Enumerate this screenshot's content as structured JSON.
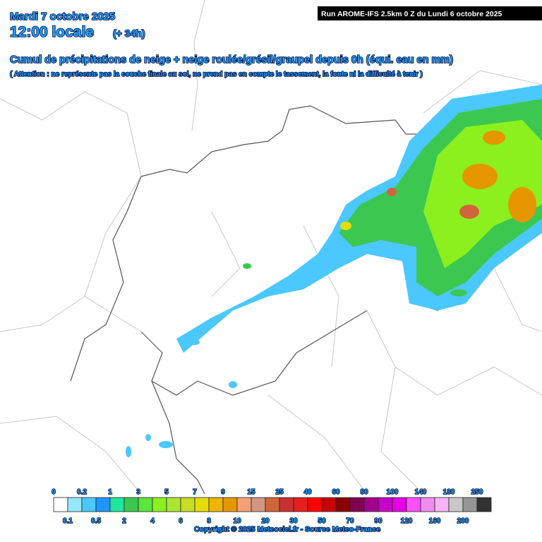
{
  "header": {
    "date": "Mardi 7 octobre 2025",
    "time": "12:00 locale",
    "lead": "(+ 34h)",
    "title": "Cumul de précipitations de neige + neige roulée/grésil/graupel depuis 0h (équi. eau en mm)",
    "subtitle": "( Attention : ne représente pas la couche finale au sol, ne prend pas en compte le tassement, la fonte ni la difficulté à tenir )",
    "run": "Run AROME-IFS 2.5km 0 Z du Lundi 6 octobre 2025"
  },
  "legend": {
    "labels": [
      "0",
      "0.1",
      "0.2",
      "0.5",
      "1",
      "2",
      "3",
      "4",
      "5",
      "6",
      "7",
      "8",
      "9",
      "10",
      "15",
      "20",
      "25",
      "30",
      "40",
      "50",
      "60",
      "70",
      "80",
      "90",
      "100",
      "120",
      "140",
      "160",
      "180",
      "200",
      "250"
    ],
    "colors": [
      "#ffffff",
      "#96e6ff",
      "#4bc8ff",
      "#1e96ff",
      "#1ee6a0",
      "#3cc850",
      "#5ae63c",
      "#8cf01e",
      "#aae632",
      "#c8dc28",
      "#e6dc0a",
      "#f0b400",
      "#e69600",
      "#f5a078",
      "#d29682",
      "#d2643c",
      "#c83232",
      "#e61e1e",
      "#ff0000",
      "#c80000",
      "#8c0000",
      "#820050",
      "#a0008c",
      "#c800c8",
      "#e600e6",
      "#ff50ff",
      "#f08cf0",
      "#f5b4f5",
      "#c8c8c8",
      "#969696",
      "#323232"
    ]
  },
  "footer": {
    "copyright": "Copyright © 2025 Meteociel.fr - Source Meteo-France"
  }
}
